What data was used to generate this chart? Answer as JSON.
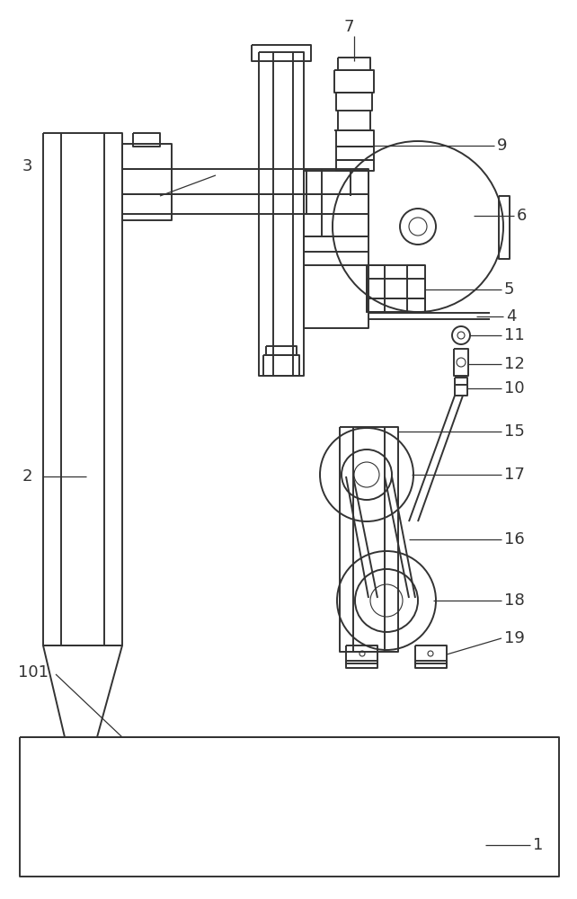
{
  "bg_color": "#ffffff",
  "line_color": "#333333",
  "lw": 1.4,
  "tlw": 0.8,
  "ann_lw": 0.9,
  "fs": 13
}
